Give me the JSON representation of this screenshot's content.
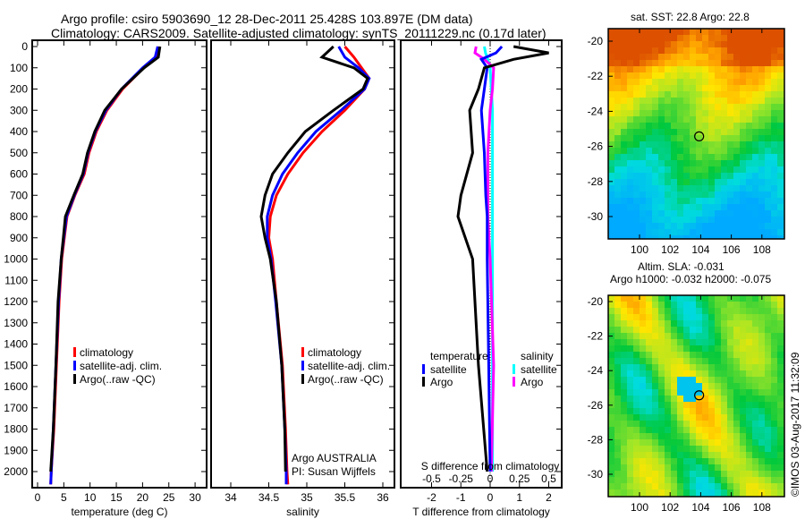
{
  "title_line1": "Argo profile: csiro 5903690_12 28-Dec-2011 25.428S 103.897E (DM data)",
  "title_line2": "Climatology: CARS2009. Satellite-adjusted climatology: synTS_20111229.nc (0.17d later)",
  "colors": {
    "climatology": "#ff0000",
    "satellite": "#0000ff",
    "argo": "#000000",
    "sal_sat": "#00ffff",
    "sal_argo": "#ff00ff"
  },
  "chart_data": [
    {
      "type": "line",
      "name": "temperature",
      "xlabel": "temperature (deg C)",
      "xlim": [
        -1,
        31
      ],
      "ylim": [
        2080,
        0
      ],
      "xticks": [
        0,
        5,
        10,
        15,
        20,
        25,
        30
      ],
      "yticks": [
        0,
        100,
        200,
        300,
        400,
        500,
        600,
        700,
        800,
        900,
        1000,
        1100,
        1200,
        1300,
        1400,
        1500,
        1600,
        1700,
        1800,
        1900,
        2000
      ],
      "legend": [
        "climatology",
        "satellite-adj. clim.",
        "Argo(..raw -QC)"
      ],
      "depth": [
        0,
        50,
        100,
        200,
        300,
        400,
        500,
        600,
        700,
        800,
        900,
        1000,
        1200,
        1500,
        1800,
        2000,
        2060
      ],
      "series": [
        {
          "name": "climatology",
          "values": [
            23,
            22.6,
            20.2,
            16.2,
            13.2,
            11.2,
            9.8,
            8.9,
            7.1,
            5.6,
            5.1,
            4.6,
            4.1,
            3.6,
            3.1,
            2.6,
            2.5
          ]
        },
        {
          "name": "satellite-adj. clim.",
          "values": [
            22.9,
            22.4,
            20,
            16,
            13,
            11,
            9.6,
            8.7,
            7,
            5.5,
            5,
            4.5,
            4,
            3.5,
            3,
            2.6,
            2.5
          ]
        },
        {
          "name": "Argo",
          "values": [
            23.3,
            23,
            20.3,
            16,
            12.8,
            10.9,
            9.5,
            8.6,
            6.9,
            5.3,
            4.9,
            4.5,
            3.9,
            3.5,
            3,
            2.5
          ]
        }
      ]
    },
    {
      "type": "line",
      "name": "salinity",
      "xlabel": "salinity",
      "xlim": [
        33.75,
        36.15
      ],
      "ylim": [
        2080,
        0
      ],
      "xticks": [
        34,
        34.5,
        35,
        35.5,
        36
      ],
      "legend": [
        "climatology",
        "satellite-adj. clim.",
        "Argo(..raw -QC)"
      ],
      "annotation1": "Argo AUSTRALIA",
      "annotation2": "PI: Susan Wijffels",
      "depth": [
        0,
        50,
        100,
        150,
        200,
        300,
        400,
        500,
        600,
        700,
        800,
        900,
        1000,
        1200,
        1500,
        1800,
        2000,
        2060
      ],
      "series": [
        {
          "name": "climatology",
          "values": [
            35.5,
            35.62,
            35.72,
            35.82,
            35.76,
            35.5,
            35.2,
            34.95,
            34.75,
            34.6,
            34.52,
            34.5,
            34.55,
            34.6,
            34.68,
            34.72,
            34.74,
            34.75
          ]
        },
        {
          "name": "satellite-adj. clim.",
          "values": [
            35.42,
            35.5,
            35.68,
            35.82,
            35.76,
            35.45,
            35.12,
            34.88,
            34.68,
            34.55,
            34.48,
            34.48,
            34.53,
            34.59,
            34.67,
            34.71,
            34.73,
            34.73
          ]
        },
        {
          "name": "Argo",
          "values": [
            35.35,
            35.2,
            35.62,
            35.8,
            35.74,
            35.35,
            34.98,
            34.75,
            34.55,
            34.45,
            34.4,
            34.45,
            34.52,
            34.6,
            34.67,
            34.71,
            34.72
          ]
        }
      ]
    },
    {
      "type": "line",
      "name": "difference",
      "xlabel": "T difference from climatology",
      "x2label": "S difference from climatology",
      "xlim": [
        -3,
        3
      ],
      "xticks": [
        -2,
        -1,
        0,
        1,
        2
      ],
      "x2ticks": [
        "-0.5",
        "-0.25",
        "0",
        "0.25",
        "0.5"
      ],
      "ylim": [
        2080,
        0
      ],
      "legend_temp_title": "temperature",
      "legend_sal_title": "salinity",
      "legend_labels": [
        "satellite",
        "Argo"
      ],
      "depth": [
        0,
        30,
        60,
        100,
        200,
        300,
        500,
        700,
        800,
        1000,
        1500,
        2000
      ],
      "series": [
        {
          "name": "T satellite",
          "values": [
            0.4,
            0.2,
            -0.3,
            -0.1,
            -0.2,
            -0.3,
            -0.2,
            -0.15,
            -0.1,
            -0.1,
            -0.05,
            0
          ]
        },
        {
          "name": "T Argo",
          "values": [
            0.8,
            2,
            0.8,
            -0.2,
            -0.4,
            -0.7,
            -0.6,
            -1,
            -1.1,
            -0.6,
            -0.4,
            -0.1
          ]
        },
        {
          "name": "S satellite",
          "values": [
            -0.05,
            -0.04,
            -0.02,
            0,
            0.01,
            0.02,
            0.02,
            0.02,
            0.02,
            0.02,
            0.02,
            0.02
          ]
        },
        {
          "name": "S Argo",
          "values": [
            -0.12,
            -0.13,
            -0.05,
            0.03,
            0.02,
            0,
            -0.02,
            -0.02,
            -0.02,
            0,
            0.03,
            0.01
          ]
        }
      ]
    }
  ],
  "map_top": {
    "title": "sat. SST: 22.8  Argo: 22.8",
    "xticks": [
      "100",
      "102",
      "104",
      "106",
      "108"
    ],
    "yticks": [
      "-20",
      "-22",
      "-24",
      "-26",
      "-28",
      "-30"
    ]
  },
  "map_bottom": {
    "title1": "Altim. SLA: -0.031",
    "title2": "Argo h1000: -0.032 h2000: -0.075",
    "xticks": [
      "100",
      "102",
      "104",
      "106",
      "108"
    ],
    "yticks": [
      "-20",
      "-22",
      "-24",
      "-26",
      "-28",
      "-30"
    ]
  },
  "credit": "©IMOS 03-Aug-2017 11:32:09"
}
